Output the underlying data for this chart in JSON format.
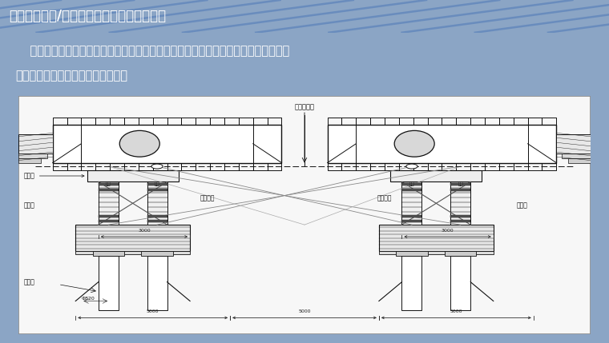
{
  "title": "施工关键技术/顶推过程中的横向纠偏及调整",
  "title_bg": "#1b4f9c",
  "title_color": "#ffffff",
  "title_fontsize": 12,
  "subtitle_bg": "#5b7fad",
  "subtitle_text1": "    在滑道两侧间断设置限位挡块，限制梁段偏移过大；梁段轴线发生偏移时，利用手拉",
  "subtitle_text2": "葫芦对滑块系统进行动态调整纠偏。",
  "subtitle_color": "#ffffff",
  "subtitle_fontsize": 10.5,
  "diagram_bg": "#f7f7f7",
  "outer_bg": "#8ba5c5",
  "line_color": "#111111",
  "dim_color": "#222222",
  "bottom_bar_color": "#1b4f9c",
  "labels": {
    "center_line": "桥架中心线",
    "distribution_beam": "分配梁",
    "limit_slot_left": "限位槽",
    "limit_slot_right": "限位槽",
    "hoist_left": "手拉葫芦",
    "hoist_right": "手拉葫芦",
    "steel_pipe": "钢管桩",
    "diameter": "Φ820",
    "slide_label": "滑台",
    "dim_3000": "3000",
    "dim_5000_left": "5000",
    "dim_5000_mid": "5000",
    "dim_5000_right": "5000"
  }
}
